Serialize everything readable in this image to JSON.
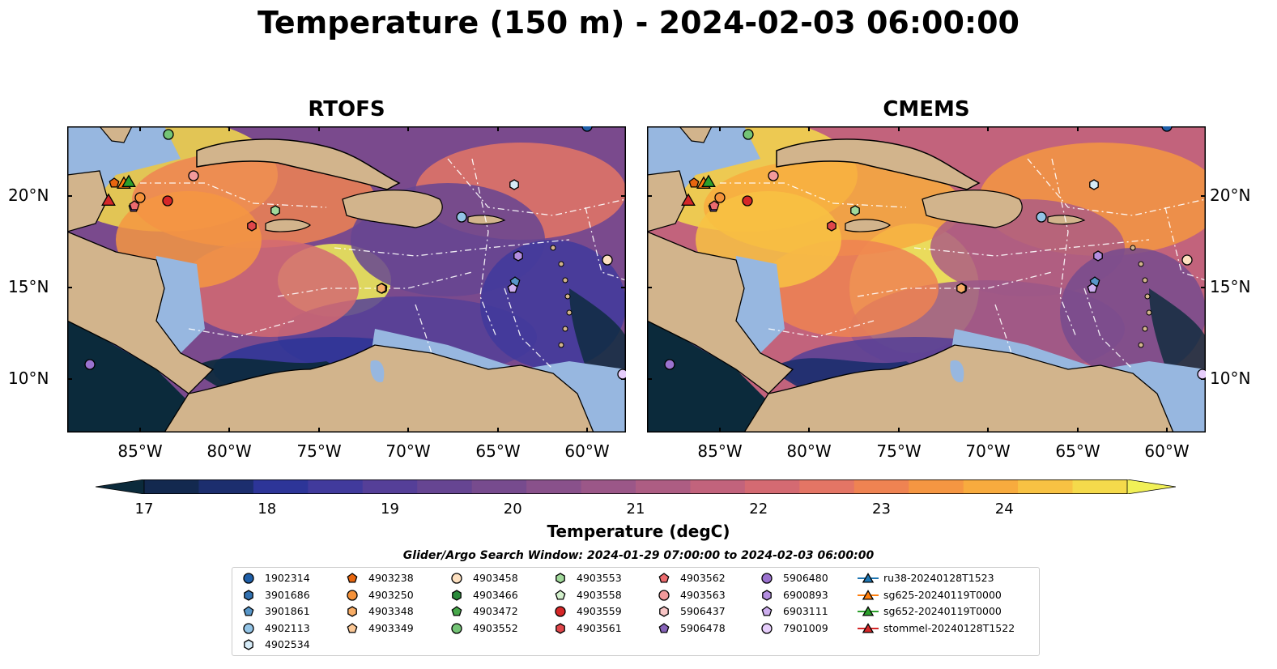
{
  "title": "Temperature (150 m) - 2024-02-03 06:00:00",
  "panels": [
    {
      "title": "RTOFS"
    },
    {
      "title": "CMEMS"
    }
  ],
  "lon_ticks": [
    "85°W",
    "80°W",
    "75°W",
    "70°W",
    "65°W",
    "60°W"
  ],
  "lat_ticks": [
    "20°N",
    "15°N",
    "10°N"
  ],
  "colorbar": {
    "label": "Temperature (degC)",
    "ticks": [
      "17",
      "18",
      "19",
      "20",
      "21",
      "22",
      "23",
      "24"
    ],
    "range": [
      16.75,
      24.5
    ],
    "step": 0.5,
    "extend": "both",
    "colormap": "thermal",
    "colors": [
      "#0b2a3b",
      "#13294f",
      "#1c2e6e",
      "#2d3598",
      "#413a9c",
      "#553f98",
      "#664592",
      "#774b8e",
      "#89518b",
      "#9b5788",
      "#ad5d83",
      "#c2637c",
      "#d46a72",
      "#e47565",
      "#ef8352",
      "#f59642",
      "#f8ab3e",
      "#f8c243",
      "#f5da4b",
      "#f1f057"
    ]
  },
  "map_colors": {
    "land": "#d2b48c",
    "shelf": "#97b7e0",
    "cold_water": "#0b2a3b",
    "coast": "#000000"
  },
  "search_window": "Glider/Argo Search Window: 2024-01-29 07:00:00 to 2024-02-03 06:00:00",
  "legend": [
    {
      "label": "1902314",
      "marker": "circle",
      "color": "#1f5fa8"
    },
    {
      "label": "3901686",
      "marker": "hexagon",
      "color": "#3271b0"
    },
    {
      "label": "3901861",
      "marker": "pentagon",
      "color": "#5896c8"
    },
    {
      "label": "4902113",
      "marker": "circle",
      "color": "#93c4e6"
    },
    {
      "label": "4902534",
      "marker": "hexagon",
      "color": "#d6ebf7"
    },
    {
      "label": "4903238",
      "marker": "pentagon",
      "color": "#e8660f"
    },
    {
      "label": "4903250",
      "marker": "circle",
      "color": "#f5923a"
    },
    {
      "label": "4903348",
      "marker": "hexagon",
      "color": "#f8ad66"
    },
    {
      "label": "4903349",
      "marker": "pentagon",
      "color": "#fcc896"
    },
    {
      "label": "4903458",
      "marker": "circle",
      "color": "#fde0c0"
    },
    {
      "label": "4903466",
      "marker": "hexagon",
      "color": "#2a8a3a"
    },
    {
      "label": "4903472",
      "marker": "pentagon",
      "color": "#47a84a"
    },
    {
      "label": "4903552",
      "marker": "circle",
      "color": "#74c476"
    },
    {
      "label": "4903553",
      "marker": "hexagon",
      "color": "#a1d99b"
    },
    {
      "label": "4903558",
      "marker": "pentagon",
      "color": "#d3f0cc"
    },
    {
      "label": "4903559",
      "marker": "circle",
      "color": "#d62728"
    },
    {
      "label": "4903561",
      "marker": "hexagon",
      "color": "#e0464a"
    },
    {
      "label": "4903562",
      "marker": "pentagon",
      "color": "#ec6b6e"
    },
    {
      "label": "4903563",
      "marker": "circle",
      "color": "#f29a9b"
    },
    {
      "label": "5906437",
      "marker": "hexagon",
      "color": "#f9c6c6"
    },
    {
      "label": "5906478",
      "marker": "pentagon",
      "color": "#8663b8"
    },
    {
      "label": "5906480",
      "marker": "circle",
      "color": "#9b72cf"
    },
    {
      "label": "6900893",
      "marker": "hexagon",
      "color": "#b48ee0"
    },
    {
      "label": "6903111",
      "marker": "pentagon",
      "color": "#cdaeee"
    },
    {
      "label": "7901009",
      "marker": "circle",
      "color": "#e6cdfb"
    },
    {
      "label": "ru38-20240128T1523",
      "marker": "triangle",
      "color": "#1f77b4"
    },
    {
      "label": "sg625-20240119T0000",
      "marker": "triangle",
      "color": "#ff7f0e"
    },
    {
      "label": "sg652-20240119T0000",
      "marker": "triangle",
      "color": "#2ca02c"
    },
    {
      "label": "stommel-20240128T1522",
      "marker": "triangle",
      "color": "#d62728"
    }
  ]
}
